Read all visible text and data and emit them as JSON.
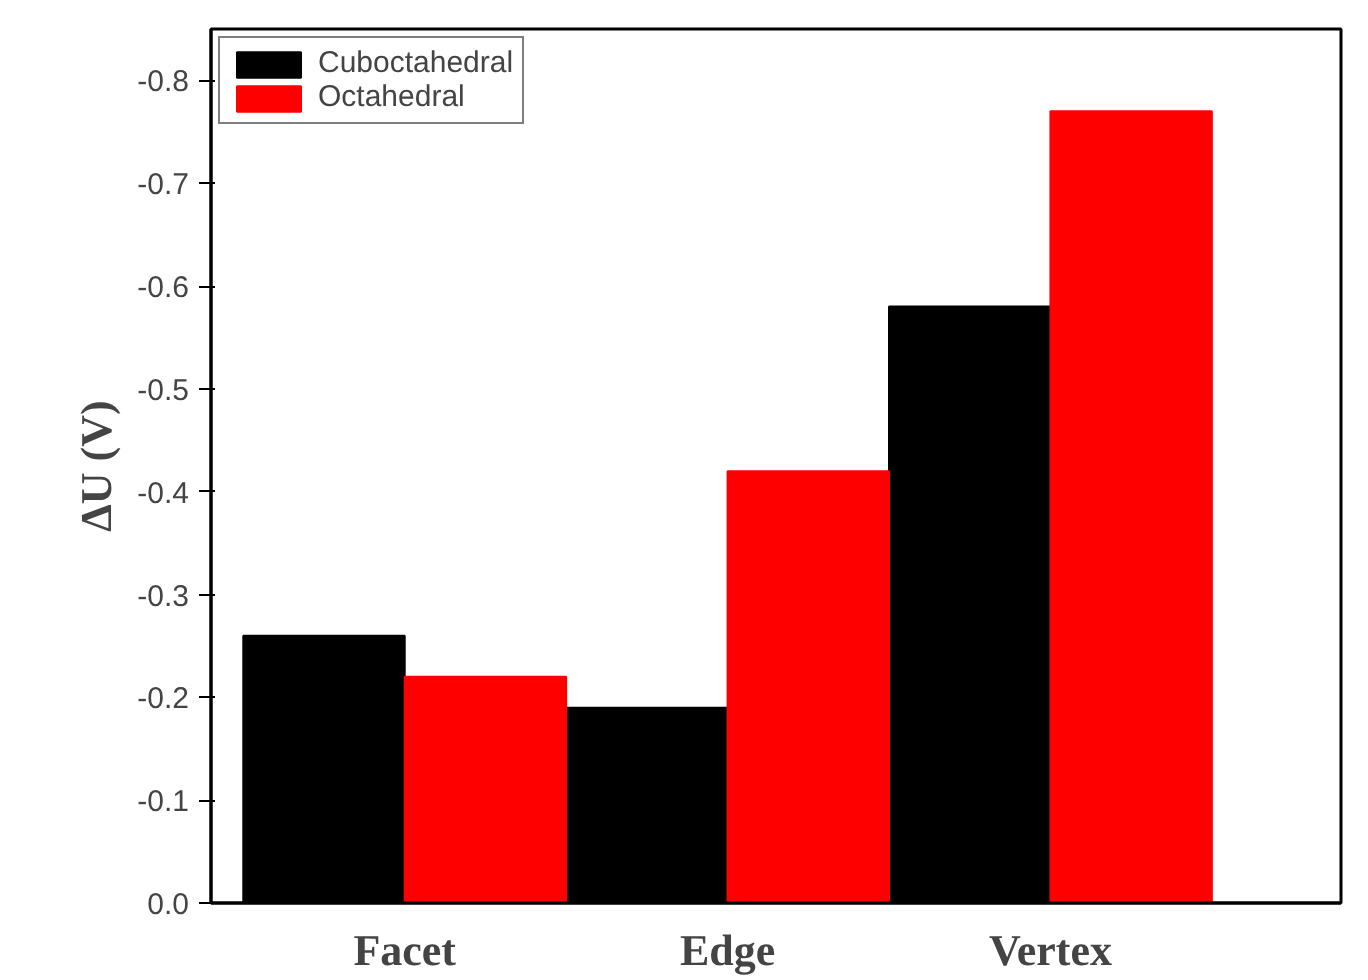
{
  "chart_data": {
    "type": "bar",
    "ylabel": "ΔU (V)",
    "categories": [
      "Facet",
      "Edge",
      "Vertex"
    ],
    "series": [
      {
        "name": "Cuboctahedral",
        "color": "#000000",
        "values": [
          -0.26,
          -0.19,
          -0.58
        ]
      },
      {
        "name": "Octahedral",
        "color": "#ff0000",
        "values": [
          -0.22,
          -0.42,
          -0.77
        ]
      }
    ],
    "ylim": [
      0,
      -0.85
    ],
    "yticks": [
      {
        "value": 0,
        "label": "0.0"
      },
      -0.1,
      -0.2,
      -0.3,
      -0.4,
      -0.5,
      -0.6,
      -0.7,
      -0.8
    ],
    "legend": "top left",
    "grid": false
  }
}
